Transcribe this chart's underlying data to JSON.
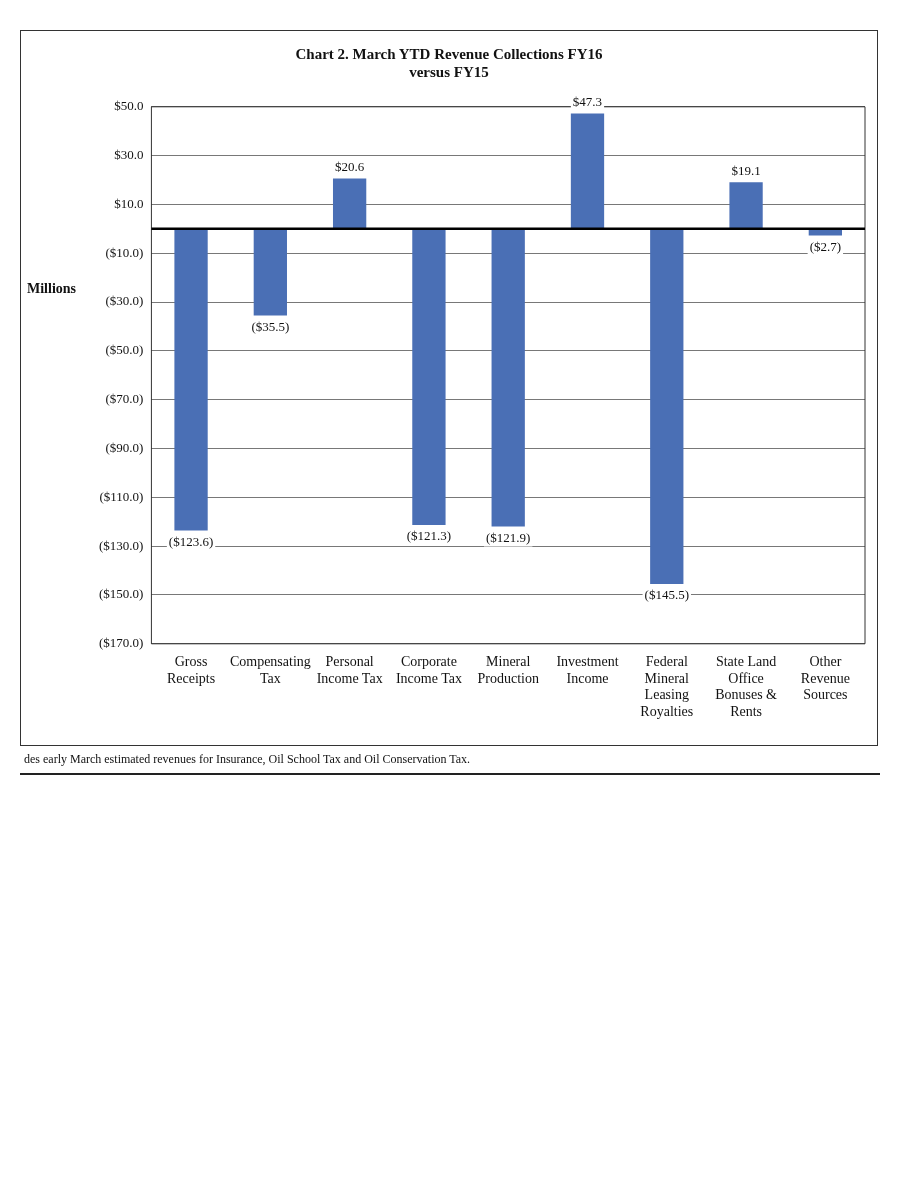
{
  "chart_data": {
    "type": "bar",
    "title": "Chart 2. March YTD Revenue Collections FY16 versus FY15",
    "ylabel": "Millions",
    "categories": [
      "Gross Receipts",
      "Compensating Tax",
      "Personal Income Tax",
      "Corporate Income Tax",
      "Mineral Production",
      "Investment Income",
      "Federal Mineral Leasing Royalties",
      "State Land Office Bonuses & Rents",
      "Other Revenue Sources"
    ],
    "values": [
      -123.6,
      -35.5,
      20.6,
      -121.3,
      -121.9,
      47.3,
      -145.5,
      19.1,
      -2.7
    ],
    "value_labels": [
      "($123.6)",
      "($35.5)",
      "$20.6",
      "($121.3)",
      "($121.9)",
      "$47.3",
      "($145.5)",
      "$19.1",
      "($2.7)"
    ],
    "color": "#4a6fb5",
    "ylim": [
      -170,
      50
    ],
    "yticks": [
      {
        "value": 50,
        "label": "$50.0"
      },
      {
        "value": 30,
        "label": "$30.0"
      },
      {
        "value": 10,
        "label": "$10.0"
      },
      {
        "value": -10,
        "label": "($10.0)"
      },
      {
        "value": -30,
        "label": "($30.0)"
      },
      {
        "value": -50,
        "label": "($50.0)"
      },
      {
        "value": -70,
        "label": "($70.0)"
      },
      {
        "value": -90,
        "label": "($90.0)"
      },
      {
        "value": -110,
        "label": "($110.0)"
      },
      {
        "value": -130,
        "label": "($130.0)"
      },
      {
        "value": -150,
        "label": "($150.0)"
      },
      {
        "value": -170,
        "label": "($170.0)"
      }
    ],
    "grid": "y",
    "annotations": [
      "des early March estimated revenues for Insurance, Oil School Tax and Oil Conservation Tax."
    ]
  }
}
